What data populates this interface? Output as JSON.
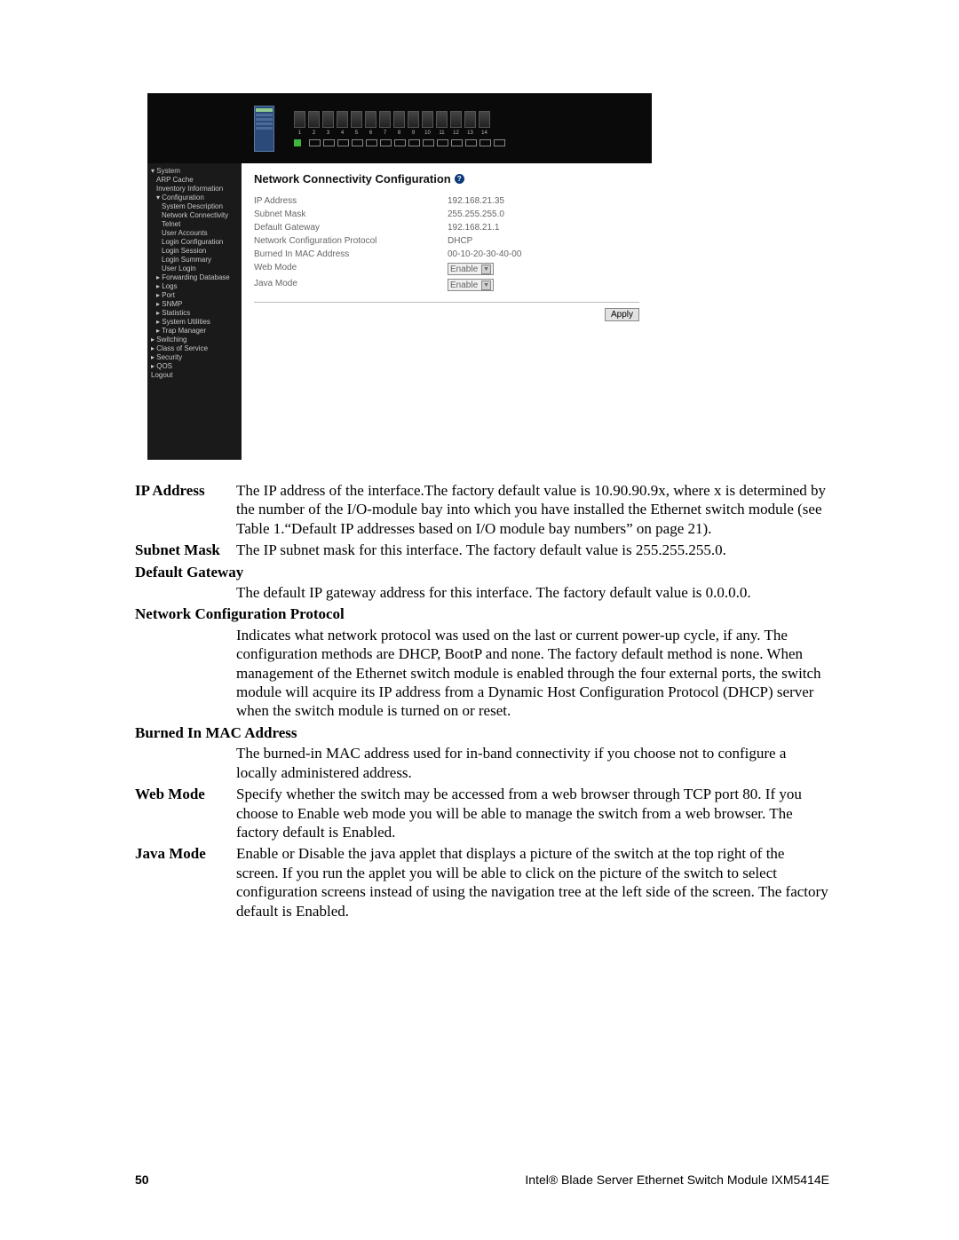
{
  "screenshot": {
    "nav": {
      "items": [
        {
          "label": "System",
          "indent": 0,
          "expand": "▾"
        },
        {
          "label": "ARP Cache",
          "indent": 1
        },
        {
          "label": "Inventory Information",
          "indent": 1
        },
        {
          "label": "Configuration",
          "indent": 1,
          "expand": "▾"
        },
        {
          "label": "System Description",
          "indent": 2
        },
        {
          "label": "Network Connectivity",
          "indent": 2
        },
        {
          "label": "Telnet",
          "indent": 2
        },
        {
          "label": "User Accounts",
          "indent": 2
        },
        {
          "label": "Login Configuration",
          "indent": 2
        },
        {
          "label": "Login Session",
          "indent": 2
        },
        {
          "label": "Login Summary",
          "indent": 2
        },
        {
          "label": "User Login",
          "indent": 2
        },
        {
          "label": "Forwarding Database",
          "indent": 1,
          "expand": "▸"
        },
        {
          "label": "Logs",
          "indent": 1,
          "expand": "▸"
        },
        {
          "label": "Port",
          "indent": 1,
          "expand": "▸"
        },
        {
          "label": "SNMP",
          "indent": 1,
          "expand": "▸"
        },
        {
          "label": "Statistics",
          "indent": 1,
          "expand": "▸"
        },
        {
          "label": "System Utilities",
          "indent": 1,
          "expand": "▸"
        },
        {
          "label": "Trap Manager",
          "indent": 1,
          "expand": "▸"
        },
        {
          "label": "Switching",
          "indent": 0,
          "expand": "▸"
        },
        {
          "label": "Class of Service",
          "indent": 0,
          "expand": "▸"
        },
        {
          "label": "Security",
          "indent": 0,
          "expand": "▸"
        },
        {
          "label": "QOS",
          "indent": 0,
          "expand": "▸"
        },
        {
          "label": "Logout",
          "indent": 0
        }
      ]
    },
    "main": {
      "title": "Network Connectivity Configuration",
      "rows": [
        {
          "label": "IP Address",
          "value": "192.168.21.35",
          "type": "text"
        },
        {
          "label": "Subnet Mask",
          "value": "255.255.255.0",
          "type": "text"
        },
        {
          "label": "Default Gateway",
          "value": "192.168.21.1",
          "type": "text"
        },
        {
          "label": "Network Configuration Protocol",
          "value": "DHCP",
          "type": "text"
        },
        {
          "label": "Burned In MAC Address",
          "value": "00-10-20-30-40-00",
          "type": "text"
        },
        {
          "label": "Web Mode",
          "value": "Enable",
          "type": "select"
        },
        {
          "label": "Java Mode",
          "value": "Enable",
          "type": "select"
        }
      ],
      "apply": "Apply"
    },
    "port_numbers": [
      "1",
      "2",
      "3",
      "4",
      "5",
      "6",
      "7",
      "8",
      "9",
      "10",
      "11",
      "12",
      "13",
      "14"
    ]
  },
  "definitions": [
    {
      "term": "IP Address",
      "inline": true,
      "body": "The IP address of the interface.The factory default value is 10.90.90.9x, where x is determined by the number of the I/O-module bay into which you have installed the Ethernet switch module (see Table 1.“Default IP addresses based on I/O module bay numbers” on page 21)."
    },
    {
      "term": "Subnet Mask",
      "inline": true,
      "body": "The IP subnet mask for this interface. The factory default value is 255.255.255.0."
    },
    {
      "term": "Default Gateway",
      "inline": false,
      "body": "The default IP gateway address for this interface. The factory default value is 0.0.0.0."
    },
    {
      "term": "Network Configuration Protocol",
      "inline": false,
      "body": "Indicates what network protocol was used on the last or current power-up cycle, if any. The configuration methods are DHCP, BootP and none. The factory default method is none. When management of the Ethernet switch module is enabled through the four external ports, the switch module will acquire its IP address from a Dynamic Host Configuration Protocol (DHCP) server when the switch module is turned on or reset."
    },
    {
      "term": "Burned In MAC Address",
      "inline": false,
      "body": "The burned-in MAC address used for in-band connectivity if you choose not to configure a locally administered address."
    },
    {
      "term": "Web Mode",
      "inline": true,
      "body": "Specify whether the switch may be accessed from a web browser through TCP port 80. If you choose to Enable web mode you will be able to manage the switch from a web browser. The factory default is Enabled."
    },
    {
      "term": "Java Mode",
      "inline": true,
      "body": "Enable or Disable the java applet that displays a picture of the switch at the top right of the screen. If you run the applet you will be able to click on the picture of the switch to select configuration screens instead of using the navigation tree at the left side of the screen. The factory default is Enabled."
    }
  ],
  "footer": {
    "page": "50",
    "title": "Intel® Blade Server Ethernet Switch Module IXM5414E"
  }
}
